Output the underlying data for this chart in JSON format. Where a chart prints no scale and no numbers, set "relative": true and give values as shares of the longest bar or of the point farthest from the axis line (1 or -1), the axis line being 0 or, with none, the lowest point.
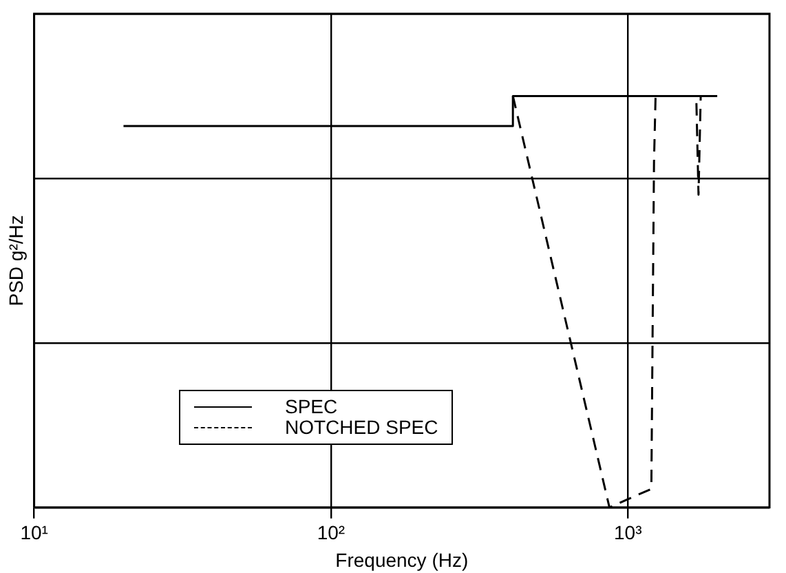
{
  "chart_data": {
    "type": "line",
    "xlabel": "Frequency (Hz)",
    "ylabel": "PSD g²/Hz",
    "log": "x",
    "relative": true,
    "grid": true,
    "legend": "bottom left",
    "marker": "none",
    "xlim": [
      10,
      3000
    ],
    "xticks": [
      {
        "value": 10,
        "label": "10¹"
      },
      {
        "value": 100,
        "label": "10²"
      },
      {
        "value": 1000,
        "label": "10³"
      }
    ],
    "series": [
      {
        "name": "SPEC",
        "color": "#000000",
        "line_style": "solid",
        "x": [
          20,
          410,
          410,
          2000
        ],
        "values": [
          0.927,
          0.927,
          1,
          1
        ]
      },
      {
        "name": "NOTCHED SPEC",
        "color": "#000000",
        "line_style": "dashed",
        "x": [
          410,
          867,
          1000,
          1200,
          1215,
          1225,
          1240,
          1700,
          1730,
          1760,
          2000
        ],
        "values": [
          1,
          0,
          0.02,
          0.045,
          0.53,
          0.84,
          1,
          1,
          0.76,
          1,
          1
        ]
      }
    ]
  }
}
